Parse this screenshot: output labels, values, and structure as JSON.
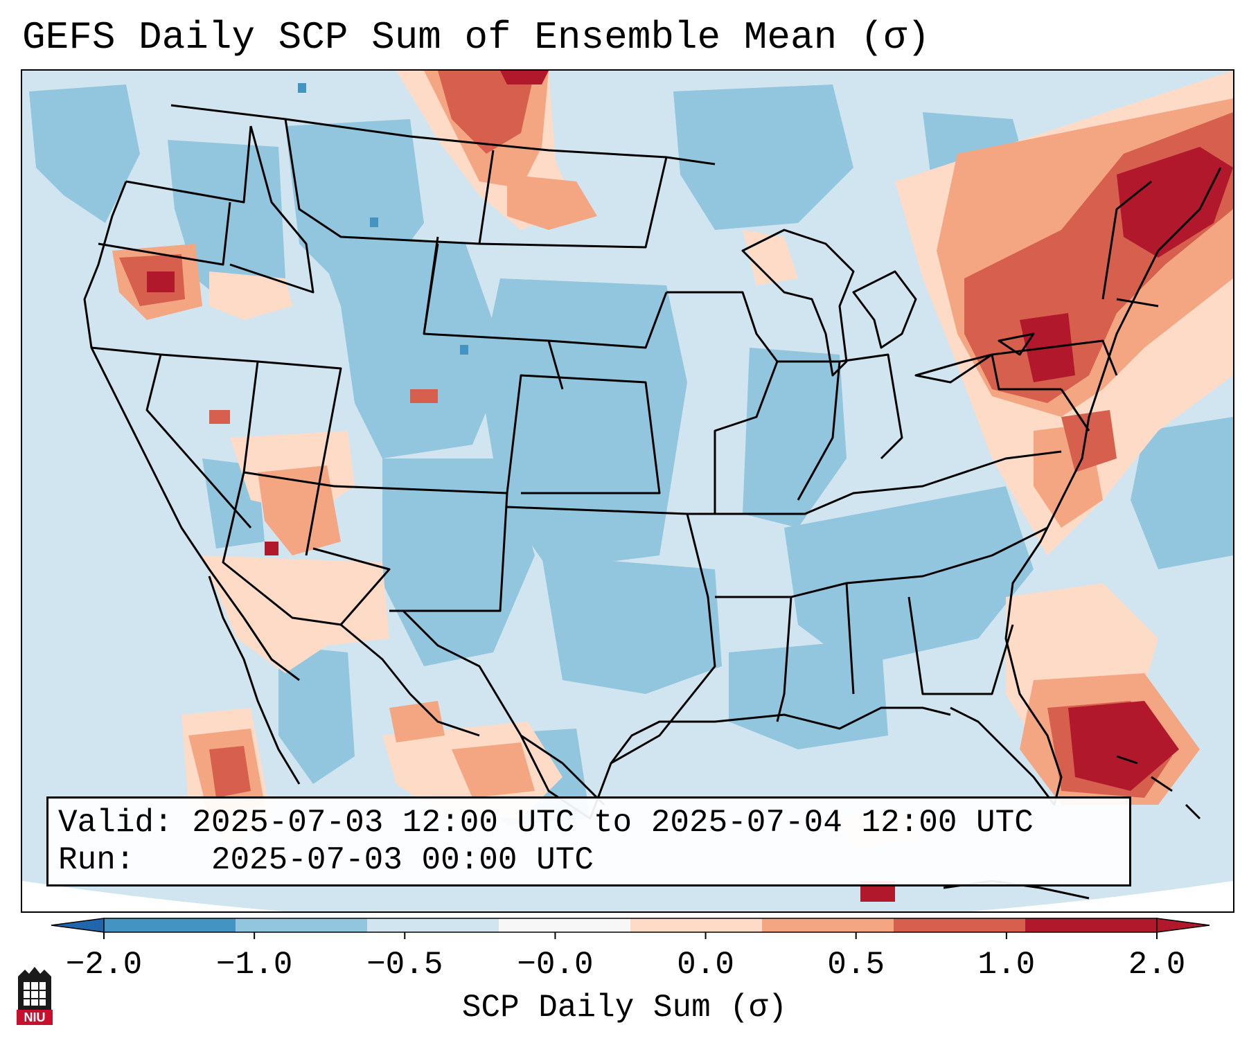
{
  "title": "GEFS Daily SCP Sum of Ensemble Mean (σ)",
  "info": {
    "valid_label": "Valid:",
    "valid_value": "2025-07-03 12:00 UTC to 2025-07-04 12:00 UTC",
    "run_label": "Run:",
    "run_value": "2025-07-03 00:00 UTC"
  },
  "colorbar": {
    "label": "SCP Daily Sum (σ)",
    "ticks": [
      "−2.0",
      "−1.0",
      "−0.5",
      "−0.0",
      "0.0",
      "0.5",
      "1.0",
      "2.0"
    ],
    "colors": [
      "#4393c3",
      "#92c5de",
      "#d1e5f0",
      "#f7f7f7",
      "#fddbc7",
      "#f4a582",
      "#d6604d",
      "#b2182b"
    ],
    "under_color": "#2166ac",
    "over_color": "#b2182b"
  },
  "logo": {
    "text": "NIU",
    "color": "#c8102e"
  },
  "map": {
    "background_color": "#d1e5f0",
    "negative_color": "#92c5de",
    "outline_color": "#000000"
  }
}
